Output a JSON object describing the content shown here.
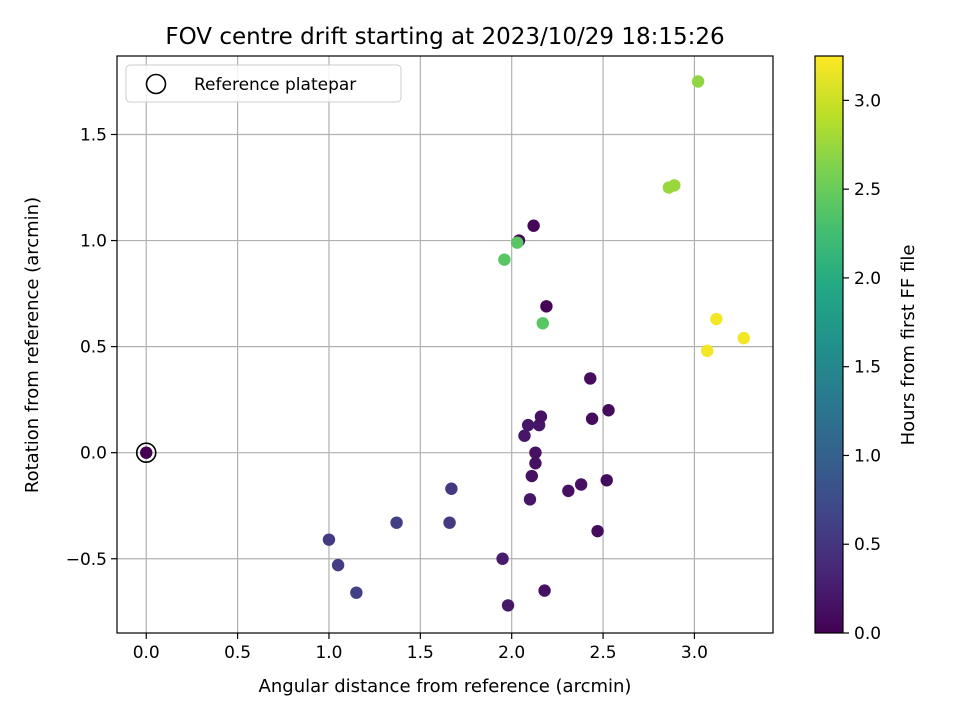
{
  "chart_data": {
    "type": "scatter",
    "title": "FOV centre drift starting at 2023/10/29 18:15:26",
    "xlabel": "Angular distance from reference (arcmin)",
    "ylabel": "Rotation from reference (arcmin)",
    "xlim": [
      -0.16,
      3.43
    ],
    "ylim": [
      -0.85,
      1.87
    ],
    "xticks": [
      0.0,
      0.5,
      1.0,
      1.5,
      2.0,
      2.5,
      3.0
    ],
    "yticks": [
      -0.5,
      0.0,
      0.5,
      1.0,
      1.5
    ],
    "xtick_labels": [
      "0.0",
      "0.5",
      "1.0",
      "1.5",
      "2.0",
      "2.5",
      "3.0"
    ],
    "ytick_labels": [
      "−0.5",
      "0.0",
      "0.5",
      "1.0",
      "1.5"
    ],
    "grid": true,
    "colormap": "viridis",
    "colorbar": {
      "label": "Hours from first FF file",
      "range": [
        0.0,
        3.25
      ],
      "ticks": [
        0.0,
        0.5,
        1.0,
        1.5,
        2.0,
        2.5,
        3.0
      ],
      "tick_labels": [
        "0.0",
        "0.5",
        "1.0",
        "1.5",
        "2.0",
        "2.5",
        "3.0"
      ]
    },
    "legend": {
      "location": "upper-left",
      "entries": [
        {
          "label": "Reference platepar",
          "marker": "open-circle"
        }
      ]
    },
    "reference_point": {
      "x": 0.0,
      "y": 0.0
    },
    "points": [
      {
        "x": 0.0,
        "y": 0.0,
        "c": 0.0
      },
      {
        "x": 1.0,
        "y": -0.41,
        "c": 0.55
      },
      {
        "x": 1.05,
        "y": -0.53,
        "c": 0.58
      },
      {
        "x": 1.15,
        "y": -0.66,
        "c": 0.62
      },
      {
        "x": 1.37,
        "y": -0.33,
        "c": 0.6
      },
      {
        "x": 1.66,
        "y": -0.33,
        "c": 0.55
      },
      {
        "x": 1.67,
        "y": -0.17,
        "c": 0.55
      },
      {
        "x": 1.95,
        "y": -0.5,
        "c": 0.25
      },
      {
        "x": 1.98,
        "y": -0.72,
        "c": 0.2
      },
      {
        "x": 2.1,
        "y": -0.22,
        "c": 0.2
      },
      {
        "x": 2.11,
        "y": -0.11,
        "c": 0.15
      },
      {
        "x": 2.13,
        "y": -0.05,
        "c": 0.15
      },
      {
        "x": 2.13,
        "y": 0.0,
        "c": 0.15
      },
      {
        "x": 2.07,
        "y": 0.08,
        "c": 0.2
      },
      {
        "x": 2.09,
        "y": 0.13,
        "c": 0.2
      },
      {
        "x": 2.15,
        "y": 0.13,
        "c": 0.2
      },
      {
        "x": 2.16,
        "y": 0.17,
        "c": 0.15
      },
      {
        "x": 2.18,
        "y": -0.65,
        "c": 0.15
      },
      {
        "x": 2.31,
        "y": -0.18,
        "c": 0.15
      },
      {
        "x": 2.38,
        "y": -0.15,
        "c": 0.15
      },
      {
        "x": 2.47,
        "y": -0.37,
        "c": 0.1
      },
      {
        "x": 2.52,
        "y": -0.13,
        "c": 0.1
      },
      {
        "x": 2.43,
        "y": 0.35,
        "c": 0.1
      },
      {
        "x": 2.44,
        "y": 0.16,
        "c": 0.1
      },
      {
        "x": 2.53,
        "y": 0.2,
        "c": 0.1
      },
      {
        "x": 2.19,
        "y": 0.69,
        "c": 0.05
      },
      {
        "x": 2.12,
        "y": 1.07,
        "c": 0.05
      },
      {
        "x": 2.04,
        "y": 1.0,
        "c": 0.05
      },
      {
        "x": 1.96,
        "y": 0.91,
        "c": 2.4
      },
      {
        "x": 2.03,
        "y": 0.99,
        "c": 2.4
      },
      {
        "x": 2.17,
        "y": 0.61,
        "c": 2.4
      },
      {
        "x": 2.86,
        "y": 1.25,
        "c": 2.75
      },
      {
        "x": 2.89,
        "y": 1.26,
        "c": 2.75
      },
      {
        "x": 3.02,
        "y": 1.75,
        "c": 2.7
      },
      {
        "x": 3.07,
        "y": 0.48,
        "c": 3.2
      },
      {
        "x": 3.12,
        "y": 0.63,
        "c": 3.2
      },
      {
        "x": 3.27,
        "y": 0.54,
        "c": 3.2
      }
    ]
  }
}
